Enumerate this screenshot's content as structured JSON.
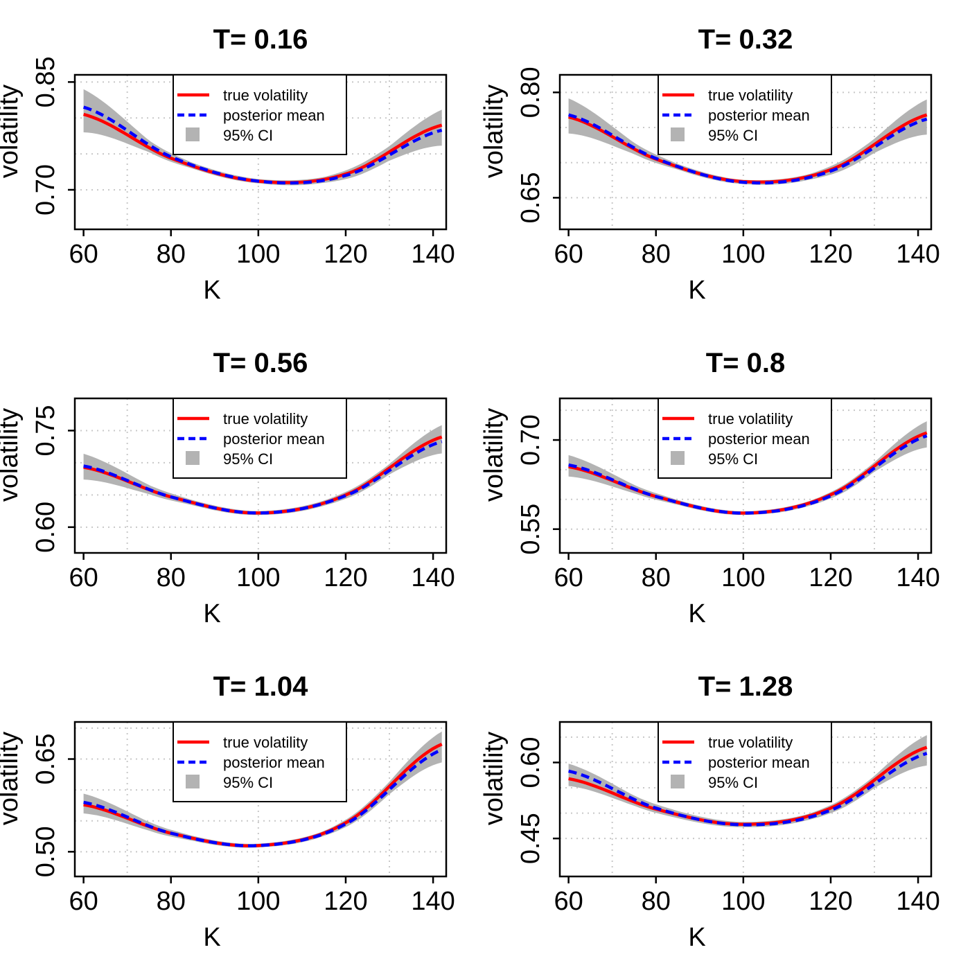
{
  "colors": {
    "true_line": "#ff0000",
    "posterior_line": "#0000ff",
    "ci_band": "#b3b3b3",
    "grid": "#c8c8c8",
    "frame": "#000000"
  },
  "legend": {
    "true_label": "true volatility",
    "posterior_label": "posterior mean",
    "ci_label": "95% CI"
  },
  "chart_data": [
    {
      "type": "line",
      "title": "T= 0.16",
      "xlabel": "K",
      "ylabel": "volatility",
      "xlim": [
        58,
        143
      ],
      "ylim": [
        0.645,
        0.86
      ],
      "xticks": [
        60,
        80,
        100,
        120,
        140
      ],
      "yticks": [
        0.7,
        0.85
      ],
      "ygrid": [
        0.7,
        0.75,
        0.8,
        0.85
      ],
      "xgrid": [
        70,
        100,
        130
      ],
      "true_curve": {
        "K": [
          60,
          80,
          100,
          120,
          142
        ],
        "v": [
          0.805,
          0.744,
          0.712,
          0.722,
          0.79
        ]
      },
      "posterior_curve": {
        "K": [
          60,
          80,
          100,
          120,
          142
        ],
        "v": [
          0.815,
          0.746,
          0.712,
          0.72,
          0.783
        ]
      },
      "ci_halfwidth": {
        "K": [
          60,
          75,
          85,
          100,
          115,
          130,
          142
        ],
        "w": [
          0.03,
          0.008,
          0.004,
          0.003,
          0.004,
          0.01,
          0.025
        ]
      },
      "grid": true,
      "legend_position": "top-center"
    },
    {
      "type": "line",
      "title": "T= 0.32",
      "xlabel": "K",
      "ylabel": "volatility",
      "xlim": [
        58,
        143
      ],
      "ylim": [
        0.605,
        0.825
      ],
      "xticks": [
        60,
        80,
        100,
        120,
        140
      ],
      "yticks": [
        0.65,
        0.8
      ],
      "ygrid": [
        0.65,
        0.7,
        0.75,
        0.8
      ],
      "xgrid": [
        70,
        100,
        130
      ],
      "true_curve": {
        "K": [
          60,
          80,
          100,
          120,
          142
        ],
        "v": [
          0.765,
          0.705,
          0.673,
          0.69,
          0.768
        ]
      },
      "posterior_curve": {
        "K": [
          60,
          80,
          100,
          120,
          142
        ],
        "v": [
          0.768,
          0.706,
          0.672,
          0.688,
          0.762
        ]
      },
      "ci_halfwidth": {
        "K": [
          60,
          75,
          85,
          100,
          115,
          130,
          142
        ],
        "w": [
          0.025,
          0.008,
          0.004,
          0.003,
          0.004,
          0.01,
          0.025
        ]
      },
      "grid": true,
      "legend_position": "top-center"
    },
    {
      "type": "line",
      "title": "T= 0.56",
      "xlabel": "K",
      "ylabel": "volatility",
      "xlim": [
        58,
        143
      ],
      "ylim": [
        0.56,
        0.8
      ],
      "xticks": [
        60,
        80,
        100,
        120,
        140
      ],
      "yticks": [
        0.6,
        0.75
      ],
      "ygrid": [
        0.6,
        0.65,
        0.7,
        0.75,
        0.8
      ],
      "xgrid": [
        70,
        100,
        130
      ],
      "true_curve": {
        "K": [
          60,
          80,
          100,
          120,
          142
        ],
        "v": [
          0.693,
          0.647,
          0.622,
          0.65,
          0.74
        ]
      },
      "posterior_curve": {
        "K": [
          60,
          80,
          100,
          120,
          142
        ],
        "v": [
          0.695,
          0.647,
          0.622,
          0.649,
          0.733
        ]
      },
      "ci_halfwidth": {
        "K": [
          60,
          75,
          85,
          100,
          115,
          130,
          142
        ],
        "w": [
          0.02,
          0.007,
          0.004,
          0.003,
          0.004,
          0.008,
          0.022
        ]
      },
      "grid": true,
      "legend_position": "top-center"
    },
    {
      "type": "line",
      "title": "T= 0.8",
      "xlabel": "K",
      "ylabel": "volatility",
      "xlim": [
        58,
        143
      ],
      "ylim": [
        0.51,
        0.77
      ],
      "xticks": [
        60,
        80,
        100,
        120,
        140
      ],
      "yticks": [
        0.55,
        0.7
      ],
      "ygrid": [
        0.55,
        0.6,
        0.65,
        0.7,
        0.75
      ],
      "xgrid": [
        70,
        100,
        130
      ],
      "true_curve": {
        "K": [
          60,
          80,
          100,
          120,
          142
        ],
        "v": [
          0.655,
          0.605,
          0.577,
          0.608,
          0.712
        ]
      },
      "posterior_curve": {
        "K": [
          60,
          80,
          100,
          120,
          142
        ],
        "v": [
          0.658,
          0.605,
          0.577,
          0.606,
          0.707
        ]
      },
      "ci_halfwidth": {
        "K": [
          60,
          75,
          85,
          100,
          115,
          130,
          142
        ],
        "w": [
          0.018,
          0.007,
          0.004,
          0.003,
          0.004,
          0.008,
          0.022
        ]
      },
      "grid": true,
      "legend_position": "top-center"
    },
    {
      "type": "line",
      "title": "T= 1.04",
      "xlabel": "K",
      "ylabel": "volatility",
      "xlim": [
        58,
        143
      ],
      "ylim": [
        0.46,
        0.71
      ],
      "xticks": [
        60,
        80,
        100,
        120,
        140
      ],
      "yticks": [
        0.5,
        0.65
      ],
      "ygrid": [
        0.5,
        0.55,
        0.6,
        0.65,
        0.7
      ],
      "xgrid": [
        70,
        100,
        130
      ],
      "true_curve": {
        "K": [
          60,
          80,
          100,
          120,
          142
        ],
        "v": [
          0.576,
          0.53,
          0.51,
          0.547,
          0.674
        ]
      },
      "posterior_curve": {
        "K": [
          60,
          80,
          100,
          120,
          142
        ],
        "v": [
          0.58,
          0.53,
          0.51,
          0.545,
          0.665
        ]
      },
      "ci_halfwidth": {
        "K": [
          60,
          75,
          85,
          100,
          115,
          130,
          142
        ],
        "w": [
          0.016,
          0.007,
          0.004,
          0.003,
          0.004,
          0.01,
          0.025
        ]
      },
      "grid": true,
      "legend_position": "top-center"
    },
    {
      "type": "line",
      "title": "T= 1.28",
      "xlabel": "K",
      "ylabel": "volatility",
      "xlim": [
        58,
        143
      ],
      "ylim": [
        0.375,
        0.68
      ],
      "xticks": [
        60,
        80,
        100,
        120,
        140
      ],
      "yticks": [
        0.45,
        0.6
      ],
      "ygrid": [
        0.45,
        0.5,
        0.55,
        0.6,
        0.65
      ],
      "xgrid": [
        70,
        100,
        130
      ],
      "true_curve": {
        "K": [
          60,
          80,
          100,
          120,
          142
        ],
        "v": [
          0.568,
          0.508,
          0.478,
          0.51,
          0.63
        ]
      },
      "posterior_curve": {
        "K": [
          60,
          80,
          100,
          120,
          142
        ],
        "v": [
          0.583,
          0.51,
          0.477,
          0.506,
          0.618
        ]
      },
      "ci_halfwidth": {
        "K": [
          60,
          75,
          85,
          100,
          115,
          130,
          142
        ],
        "w": [
          0.022,
          0.01,
          0.007,
          0.005,
          0.006,
          0.012,
          0.03
        ]
      },
      "grid": true,
      "legend_position": "top-center"
    }
  ]
}
